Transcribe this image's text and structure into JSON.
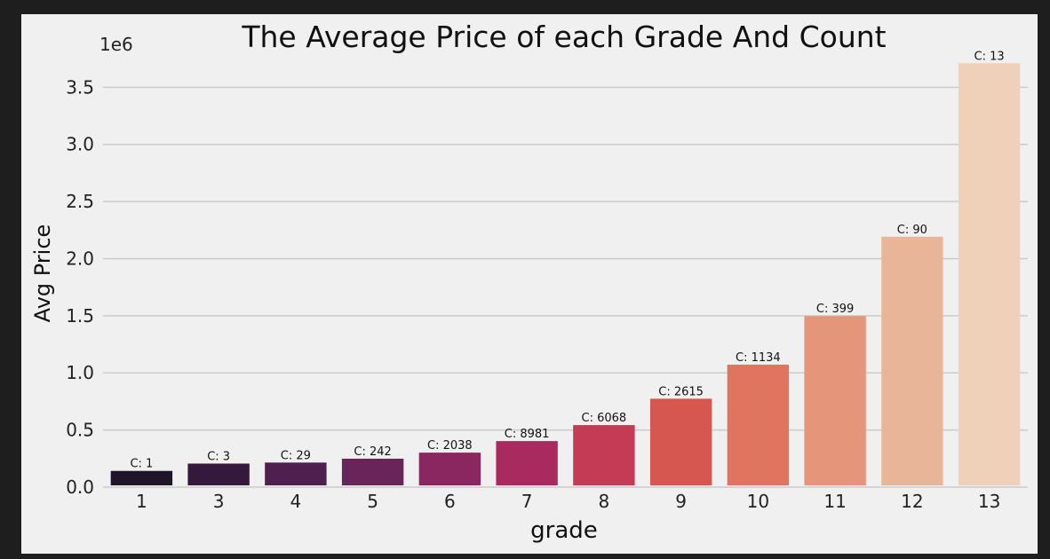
{
  "chart_data": {
    "type": "bar",
    "title": "The Average Price of each Grade And Count",
    "xlabel": "grade",
    "ylabel": "Avg Price",
    "y_offset_label": "1e6",
    "ylim": [
      0,
      3.72
    ],
    "yticks": [
      0.0,
      0.5,
      1.0,
      1.5,
      2.0,
      2.5,
      3.0,
      3.5
    ],
    "ytick_labels": [
      "0.0",
      "0.5",
      "1.0",
      "1.5",
      "2.0",
      "2.5",
      "3.0",
      "3.5"
    ],
    "grid": "horizontal",
    "categories": [
      "1",
      "3",
      "4",
      "5",
      "6",
      "7",
      "8",
      "9",
      "10",
      "11",
      "12",
      "13"
    ],
    "values": [
      0.142,
      0.206,
      0.215,
      0.249,
      0.302,
      0.403,
      0.543,
      0.774,
      1.072,
      1.497,
      2.192,
      3.71
    ],
    "value_units": "1e6",
    "annotations": [
      "C: 1",
      "C: 3",
      "C: 29",
      "C: 242",
      "C: 2038",
      "C: 8981",
      "C: 6068",
      "C: 2615",
      "C: 1134",
      "C: 399",
      "C: 90",
      "C: 13"
    ],
    "colors": [
      "#1f1428",
      "#35193d",
      "#4e1f4f",
      "#69245a",
      "#8a2760",
      "#a82a5e",
      "#c43b55",
      "#d65750",
      "#df755e",
      "#e5967a",
      "#e9b598",
      "#efd0b9"
    ],
    "background_color": "#f0f0f0",
    "grid_color": "#cbcbcb"
  }
}
